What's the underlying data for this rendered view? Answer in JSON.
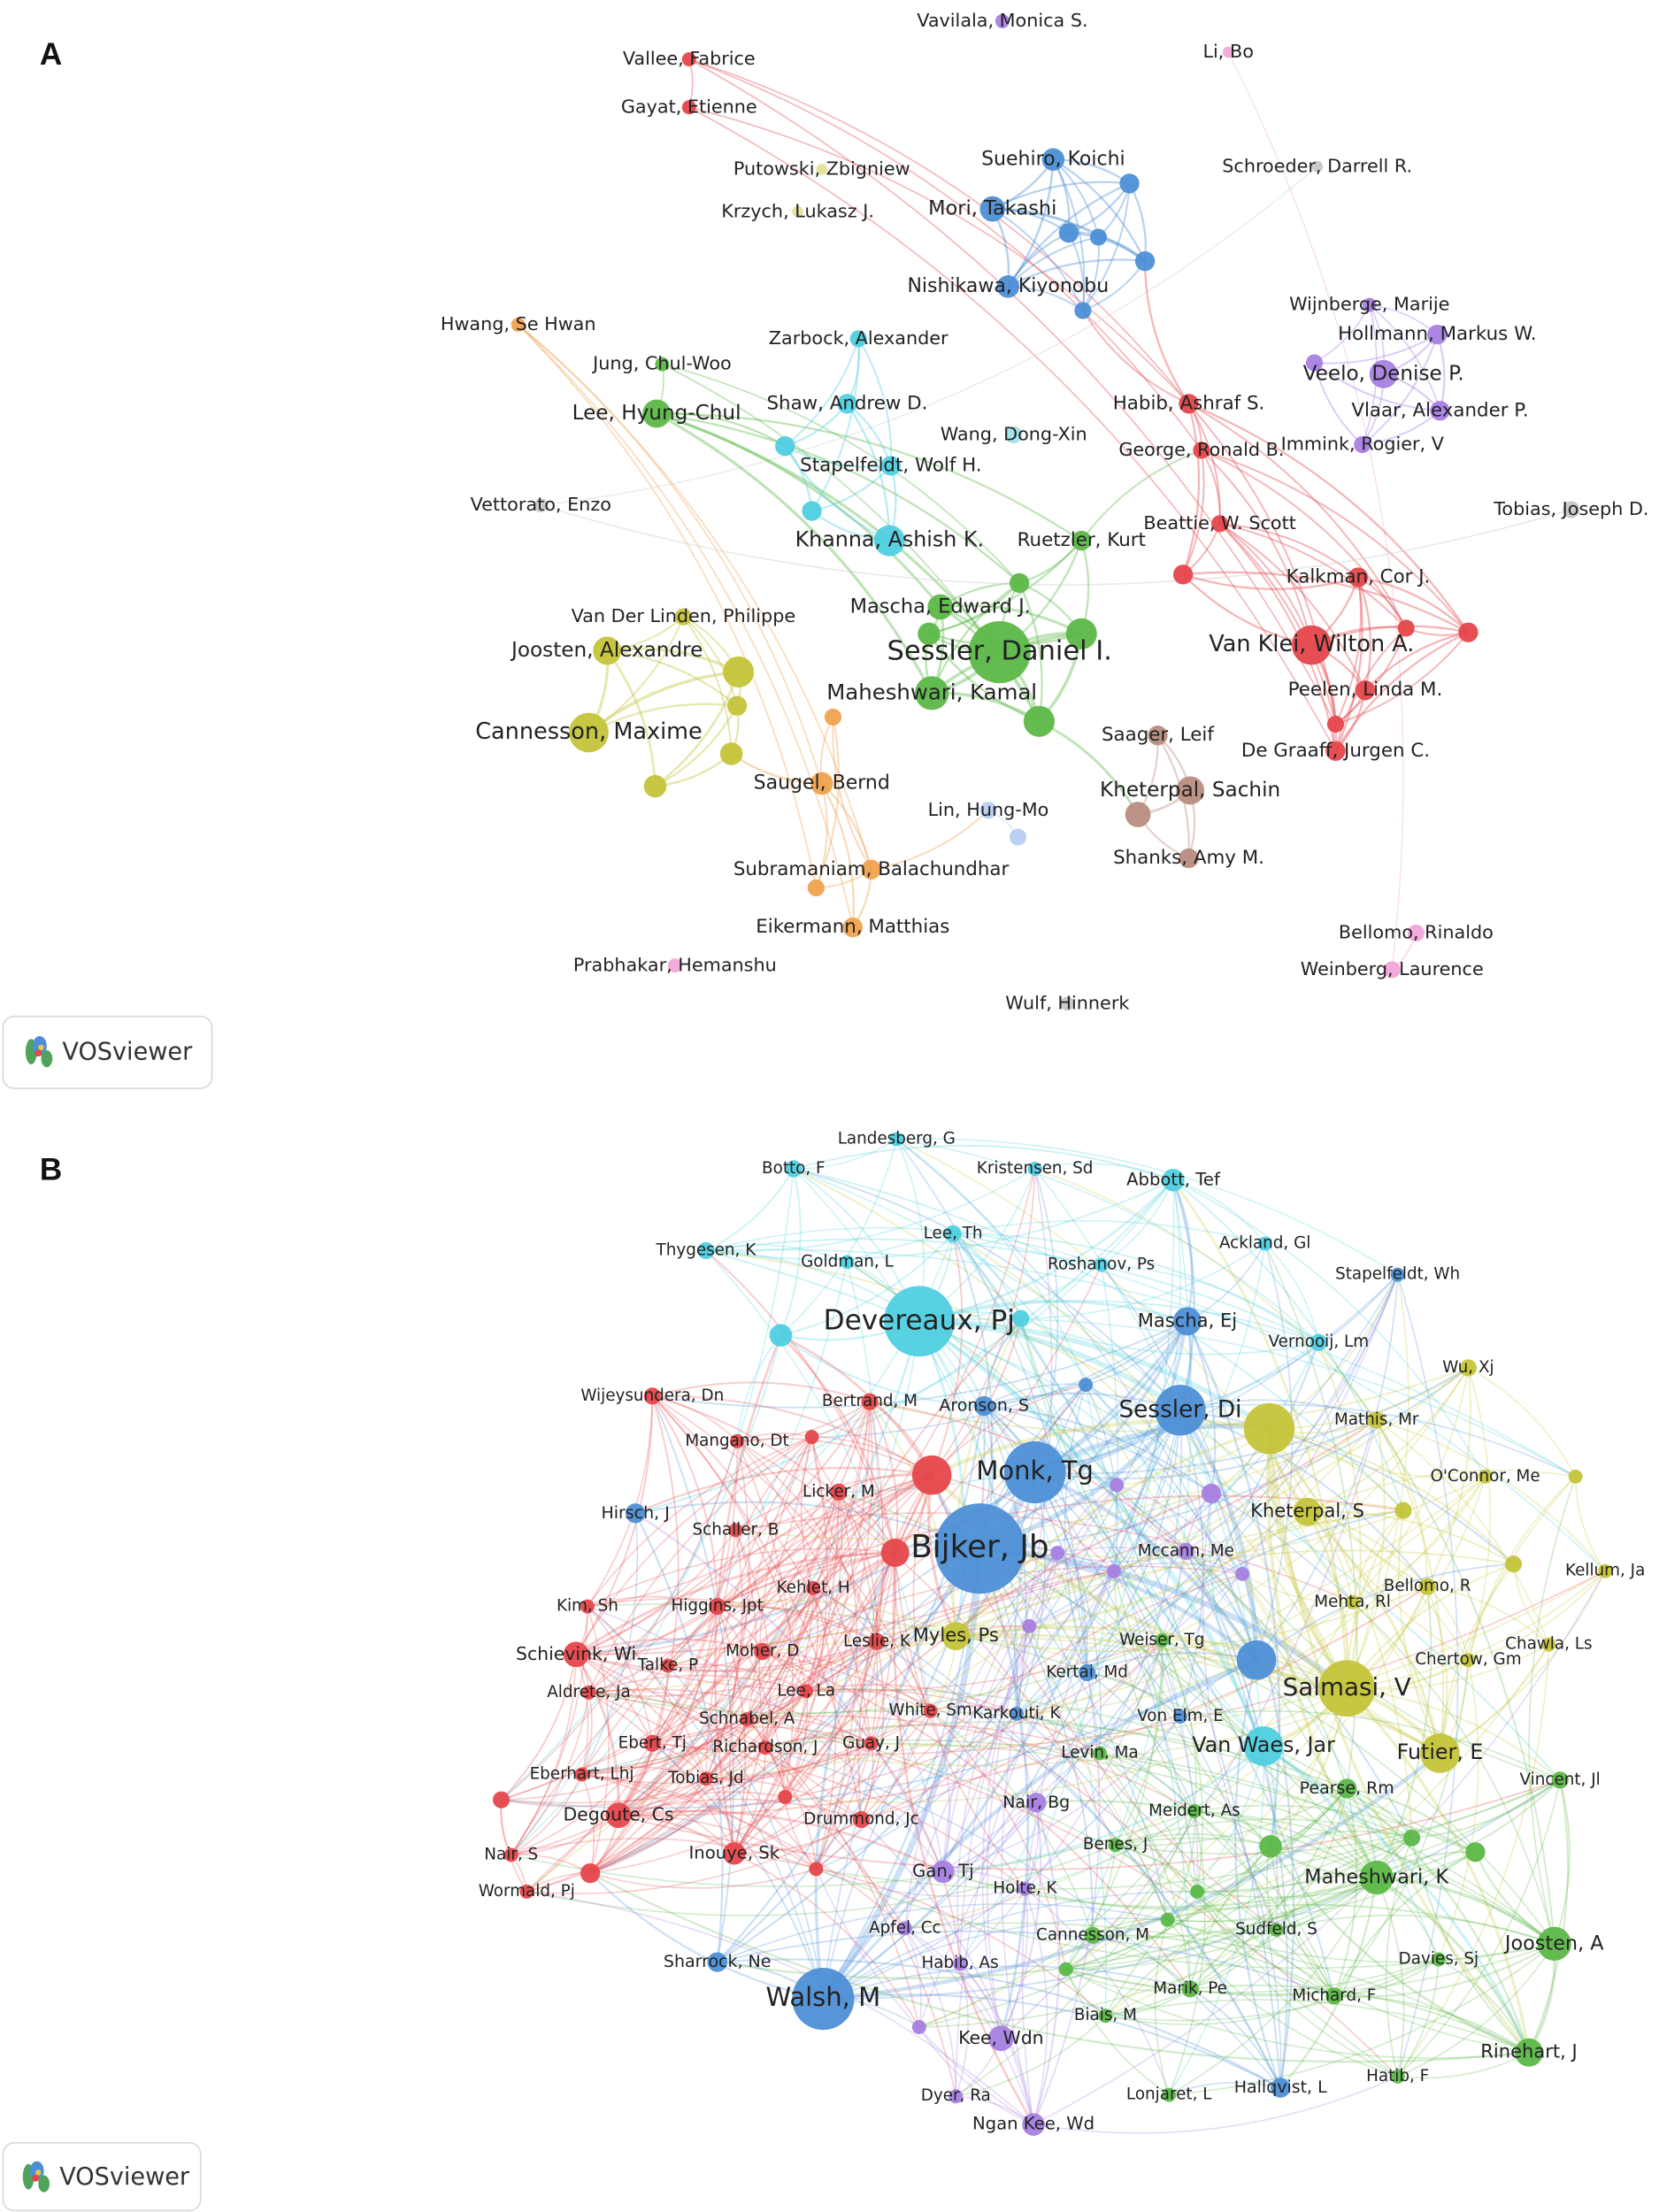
{
  "panels": [
    {
      "label": "A",
      "logo": "VOSviewer",
      "nodes": [
        "Vavilala, Monica S.",
        "Li, Bo",
        "Vallee, Fabrice",
        "Gayat, Etienne",
        "Putowski, Zbigniew",
        "Krzych, Lukasz J.",
        "Suehiro, Koichi",
        "Mori, Takashi",
        "Nishikawa, Kiyonobu",
        "Schroeder, Darrell R.",
        "Hwang, Se Hwan",
        "Jung, Chul-Woo",
        "Lee, Hyung-Chul",
        "Zarbock, Alexander",
        "Shaw, Andrew D.",
        "Wang, Dong-Xin",
        "Stapelfeldt, Wolf H.",
        "Khanna, Ashish K.",
        "Ruetzler, Kurt",
        "Mascha, Edward J.",
        "Sessler, Daniel I.",
        "Maheshwari, Kamal",
        "Habib, Ashraf S.",
        "George, Ronald B.",
        "Beattie, W. Scott",
        "Wijnberge, Marije",
        "Hollmann, Markus W.",
        "Veelo, Denise P.",
        "Vlaar, Alexander P.",
        "Immink, Rogier, V",
        "Tobias, Joseph D.",
        "Vettorato, Enzo",
        "Kalkman, Cor J.",
        "Van Klei, Wilton A.",
        "Peelen, Linda M.",
        "De Graaff, Jurgen C.",
        "Van Der Linden, Philippe",
        "Joosten, Alexandre",
        "Cannesson, Maxime",
        "Saugel, Bernd",
        "Saager, Leif",
        "Kheterpal, Sachin",
        "Lin, Hung-Mo",
        "Shanks, Amy M.",
        "Subramaniam, Balachundhar",
        "Eikermann, Matthias",
        "Bellomo, Rinaldo",
        "Weinberg, Laurence",
        "Prabhakar, Hemanshu",
        "Wulf, Hinnerk"
      ]
    },
    {
      "label": "B",
      "logo": "VOSviewer",
      "nodes": [
        "Landesberg, G",
        "Botto, F",
        "Kristensen, Sd",
        "Abbott, Tef",
        "Lee, Th",
        "Thygesen, K",
        "Goldman, L",
        "Roshanov, Ps",
        "Ackland, Gl",
        "Stapelfeldt, Wh",
        "Devereaux, Pj",
        "Mascha, Ej",
        "Vernooij, Lm",
        "Wu, Xj",
        "Wijeysundera, Dn",
        "Bertrand, M",
        "Aronson, S",
        "Sessler, Di",
        "Mathis, Mr",
        "Mangano, Dt",
        "Monk, Tg",
        "O'Connor, Me",
        "Licker, M",
        "Hirsch, J",
        "Schaller, B",
        "Kheterpal, S",
        "Bijker, Jb",
        "Mccann, Me",
        "Kellum, Ja",
        "Bellomo, R",
        "Kehlet, H",
        "Kim, Sh",
        "Higgins, Jpt",
        "Mehta, Rl",
        "Myles, Ps",
        "Leslie, K",
        "Weiser, Tg",
        "Chawla, Ls",
        "Schievink, Wi",
        "Moher, D",
        "Talke, P",
        "Chertow, Gm",
        "Salmasi, V",
        "Kertai, Md",
        "Aldrete, Ja",
        "Lee, La",
        "Schnabel, A",
        "White, Sm",
        "Karkouti, K",
        "Von Elm, E",
        "Ebert, Tj",
        "Richardson, J",
        "Guay, J",
        "Levin, Ma",
        "Van Waes, Jar",
        "Futier, E",
        "Eberhart, Lhj",
        "Tobias, Jd",
        "Vincent, Jl",
        "Pearse, Rm",
        "Degoute, Cs",
        "Drummond, Jc",
        "Nair, Bg",
        "Meidert, As",
        "Benes, J",
        "Nair, S",
        "Inouye, Sk",
        "Maheshwari, K",
        "Gan, Tj",
        "Holte, K",
        "Wormald, Pj",
        "Apfel, Cc",
        "Cannesson, M",
        "Sudfeld, S",
        "Joosten, A",
        "Sharrock, Ne",
        "Habib, As",
        "Davies, Sj",
        "Walsh, M",
        "Marik, Pe",
        "Michard, F",
        "Biais, M",
        "Kee, Wdn",
        "Rinehart, J",
        "Hatib, F",
        "Dyer, Ra",
        "Lonjaret, L",
        "Hallqvist, L",
        "Ngan Kee, Wd"
      ]
    }
  ]
}
